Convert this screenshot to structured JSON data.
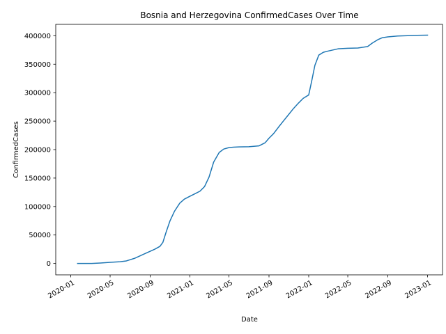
{
  "chart_data": {
    "type": "line",
    "title": "Bosnia and Herzegovina  ConfirmedCases Over Time",
    "xlabel": "Date",
    "ylabel": "ConfirmedCases",
    "x_ticks": [
      "2020-01",
      "2020-05",
      "2020-09",
      "2021-01",
      "2021-05",
      "2021-09",
      "2022-01",
      "2022-05",
      "2022-09",
      "2023-01"
    ],
    "y_ticks": [
      0,
      50000,
      100000,
      150000,
      200000,
      250000,
      300000,
      350000,
      400000
    ],
    "xlim": [
      "2019-11-16",
      "2023-02-16"
    ],
    "ylim": [
      -20000,
      420000
    ],
    "grid": false,
    "series": [
      {
        "color": "#1f77b4",
        "x": [
          "2020-01-22",
          "2020-03-05",
          "2020-04-01",
          "2020-05-01",
          "2020-06-01",
          "2020-06-20",
          "2020-07-15",
          "2020-08-15",
          "2020-09-15",
          "2020-10-01",
          "2020-10-10",
          "2020-10-20",
          "2020-11-01",
          "2020-11-15",
          "2020-12-01",
          "2020-12-15",
          "2021-01-01",
          "2021-01-15",
          "2021-02-01",
          "2021-02-15",
          "2021-03-01",
          "2021-03-15",
          "2021-04-01",
          "2021-04-15",
          "2021-05-01",
          "2021-05-15",
          "2021-06-01",
          "2021-07-01",
          "2021-08-01",
          "2021-08-20",
          "2021-09-01",
          "2021-09-15",
          "2021-10-01",
          "2021-10-15",
          "2021-11-01",
          "2021-11-15",
          "2021-12-01",
          "2021-12-15",
          "2022-01-01",
          "2022-01-10",
          "2022-01-20",
          "2022-02-01",
          "2022-02-15",
          "2022-03-01",
          "2022-04-01",
          "2022-05-01",
          "2022-06-01",
          "2022-07-01",
          "2022-07-15",
          "2022-08-01",
          "2022-08-15",
          "2022-09-01",
          "2022-10-01",
          "2022-11-01",
          "2022-12-01",
          "2023-01-01"
        ],
        "y": [
          0,
          0,
          800,
          2000,
          3000,
          4500,
          9000,
          17000,
          25000,
          30000,
          37000,
          55000,
          75000,
          92000,
          106000,
          113000,
          118000,
          122000,
          127000,
          135000,
          152000,
          178000,
          195000,
          201000,
          203500,
          204300,
          204700,
          205000,
          206500,
          212000,
          220000,
          228000,
          240000,
          250000,
          262000,
          272000,
          282000,
          290000,
          296000,
          320000,
          348000,
          366000,
          371000,
          373000,
          377000,
          378000,
          378500,
          381000,
          387000,
          393000,
          396500,
          398000,
          399500,
          400200,
          400800,
          401000
        ]
      }
    ]
  }
}
